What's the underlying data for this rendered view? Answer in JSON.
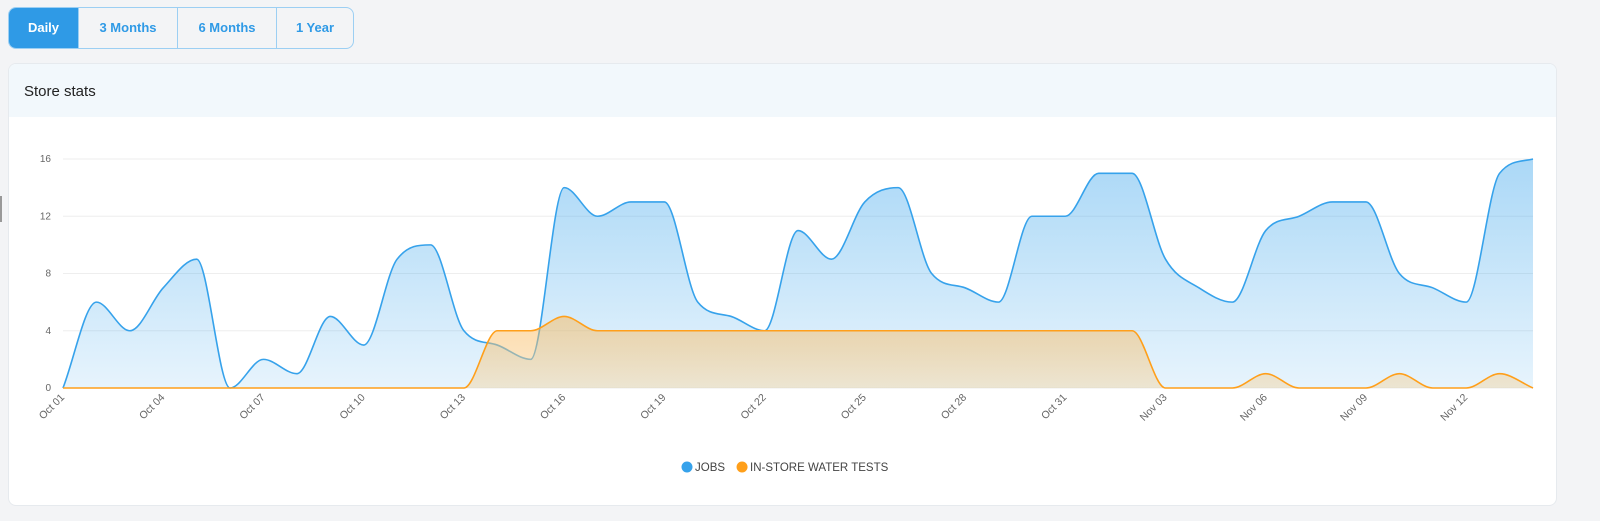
{
  "tabs": [
    {
      "label": "Daily",
      "active": true
    },
    {
      "label": "3 Months",
      "active": false
    },
    {
      "label": "6 Months",
      "active": false
    },
    {
      "label": "1 Year",
      "active": false
    }
  ],
  "card": {
    "title": "Store stats"
  },
  "colors": {
    "jobs": "#36a2eb",
    "water": "#ff9f1a",
    "accent": "#2f9ae6"
  },
  "chart_data": {
    "type": "area",
    "title": "",
    "xlabel": "",
    "ylabel": "",
    "ylim": [
      0,
      16
    ],
    "yticks": [
      0,
      4,
      8,
      12,
      16
    ],
    "grid": true,
    "legend_position": "bottom",
    "x": [
      "Oct 01",
      "Oct 02",
      "Oct 03",
      "Oct 04",
      "Oct 05",
      "Oct 06",
      "Oct 07",
      "Oct 08",
      "Oct 09",
      "Oct 10",
      "Oct 11",
      "Oct 12",
      "Oct 13",
      "Oct 14",
      "Oct 15",
      "Oct 16",
      "Oct 17",
      "Oct 18",
      "Oct 19",
      "Oct 20",
      "Oct 21",
      "Oct 22",
      "Oct 23",
      "Oct 24",
      "Oct 25",
      "Oct 26",
      "Oct 27",
      "Oct 28",
      "Oct 29",
      "Oct 30",
      "Oct 31",
      "Nov 01",
      "Nov 02",
      "Nov 03",
      "Nov 04",
      "Nov 05",
      "Nov 06",
      "Nov 07",
      "Nov 08",
      "Nov 09",
      "Nov 10",
      "Nov 11",
      "Nov 12",
      "Nov 13",
      "Nov 14"
    ],
    "xtick_labels": [
      "Oct 01",
      "Oct 04",
      "Oct 07",
      "Oct 10",
      "Oct 13",
      "Oct 16",
      "Oct 19",
      "Oct 22",
      "Oct 25",
      "Oct 28",
      "Oct 31",
      "Nov 03",
      "Nov 06",
      "Nov 09",
      "Nov 12"
    ],
    "series": [
      {
        "name": "JOBS",
        "values": [
          0,
          6,
          4,
          7,
          9,
          0,
          2,
          1,
          5,
          3,
          9,
          10,
          4,
          3,
          2,
          14,
          12,
          13,
          13,
          6,
          5,
          4,
          11,
          9,
          13,
          14,
          8,
          7,
          6,
          12,
          12,
          15,
          15,
          9,
          7,
          6,
          11,
          12,
          13,
          13,
          8,
          7,
          6,
          15,
          16
        ]
      },
      {
        "name": "IN-STORE WATER TESTS",
        "values": [
          0,
          0,
          0,
          0,
          0,
          0,
          0,
          0,
          0,
          0,
          0,
          0,
          0,
          4,
          4,
          5,
          4,
          4,
          4,
          4,
          4,
          4,
          4,
          4,
          4,
          4,
          4,
          4,
          4,
          4,
          4,
          4,
          4,
          0,
          0,
          0,
          1,
          0,
          0,
          0,
          1,
          0,
          0,
          1,
          0
        ]
      }
    ]
  }
}
